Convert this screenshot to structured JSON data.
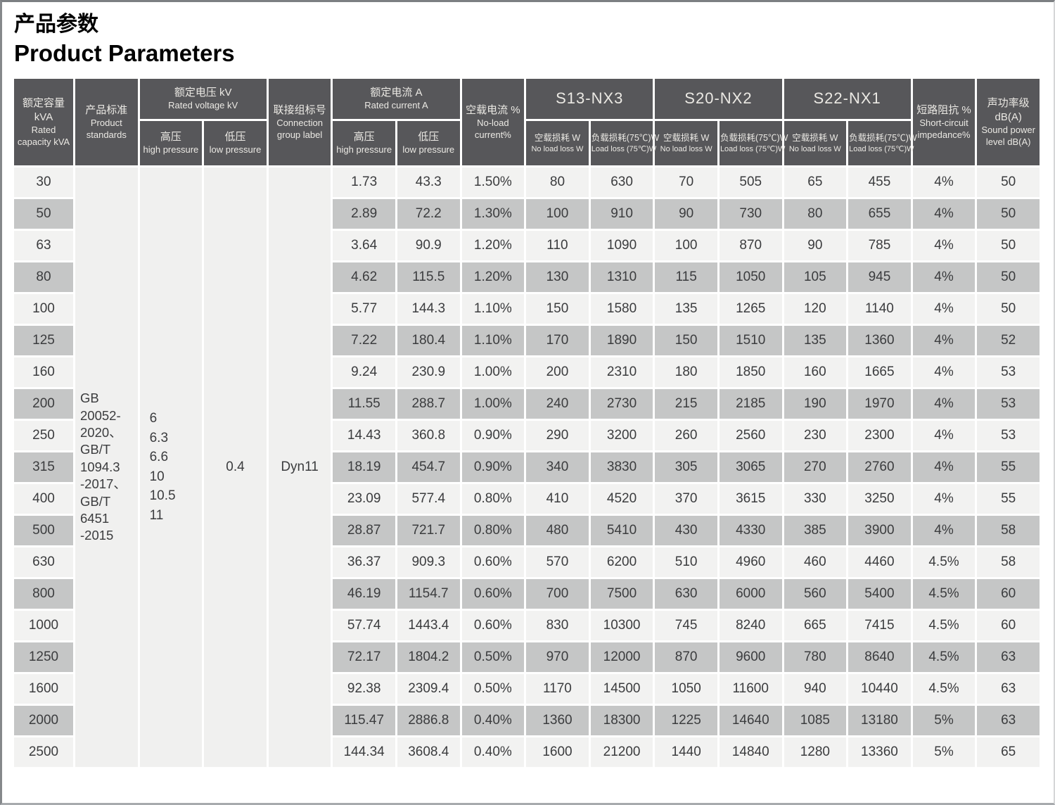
{
  "title": {
    "zh": "产品参数",
    "en": "Product Parameters"
  },
  "colors": {
    "header_bg": "#57575a",
    "header_text": "#ebe9e4",
    "row_light": "#f2f2f1",
    "row_dark": "#c5c6c6",
    "cell_text": "#3b3c3e"
  },
  "table": {
    "groups": {
      "voltage": {
        "zh": "额定电压 kV",
        "en": "Rated voltage kV"
      },
      "current": {
        "zh": "额定电流 A",
        "en": "Rated current A"
      },
      "s13": "S13-NX3",
      "s20": "S20-NX2",
      "s22": "S22-NX1"
    },
    "headers": {
      "capacity": {
        "zh": "额定容量kVA",
        "en": "Rated capacity kVA"
      },
      "standards": {
        "zh": "产品标准",
        "en": "Product standards"
      },
      "high_pressure": {
        "zh": "高压",
        "en": "high pressure"
      },
      "low_pressure": {
        "zh": "低压",
        "en": "low pressure"
      },
      "connection": {
        "zh": "联接组标号",
        "en": "Connection group label"
      },
      "no_load_current": {
        "zh": "空载电流 %",
        "en": "No-load current%"
      },
      "no_load_loss": {
        "zh": "空载损耗 W",
        "en": "No load loss W"
      },
      "load_loss": {
        "zh": "负载损耗(75℃)W",
        "en": "Load loss (75℃)W"
      },
      "impedance": {
        "zh": "短路阻抗 %",
        "en": "Short-circuit impedance%"
      },
      "sound": {
        "zh": "声功率级 dB(A)",
        "en": "Sound power level dB(A)"
      }
    },
    "merged_values": {
      "standards_lines": [
        "GB",
        "20052-",
        "2020、",
        "GB/T",
        "1094.3",
        "-2017、",
        "GB/T",
        "6451",
        "-2015"
      ],
      "high_voltage_lines": [
        "6",
        "6.3",
        "6.6",
        "10",
        "10.5",
        "11"
      ],
      "low_voltage": "0.4",
      "connection": "Dyn11"
    },
    "rows": [
      {
        "capacity": "30",
        "values": [
          "1.73",
          "43.3",
          "1.50%",
          "80",
          "630",
          "70",
          "505",
          "65",
          "455",
          "4%",
          "50"
        ]
      },
      {
        "capacity": "50",
        "values": [
          "2.89",
          "72.2",
          "1.30%",
          "100",
          "910",
          "90",
          "730",
          "80",
          "655",
          "4%",
          "50"
        ]
      },
      {
        "capacity": "63",
        "values": [
          "3.64",
          "90.9",
          "1.20%",
          "110",
          "1090",
          "100",
          "870",
          "90",
          "785",
          "4%",
          "50"
        ]
      },
      {
        "capacity": "80",
        "values": [
          "4.62",
          "115.5",
          "1.20%",
          "130",
          "1310",
          "115",
          "1050",
          "105",
          "945",
          "4%",
          "50"
        ]
      },
      {
        "capacity": "100",
        "values": [
          "5.77",
          "144.3",
          "1.10%",
          "150",
          "1580",
          "135",
          "1265",
          "120",
          "1140",
          "4%",
          "50"
        ]
      },
      {
        "capacity": "125",
        "values": [
          "7.22",
          "180.4",
          "1.10%",
          "170",
          "1890",
          "150",
          "1510",
          "135",
          "1360",
          "4%",
          "52"
        ]
      },
      {
        "capacity": "160",
        "values": [
          "9.24",
          "230.9",
          "1.00%",
          "200",
          "2310",
          "180",
          "1850",
          "160",
          "1665",
          "4%",
          "53"
        ]
      },
      {
        "capacity": "200",
        "values": [
          "11.55",
          "288.7",
          "1.00%",
          "240",
          "2730",
          "215",
          "2185",
          "190",
          "1970",
          "4%",
          "53"
        ]
      },
      {
        "capacity": "250",
        "values": [
          "14.43",
          "360.8",
          "0.90%",
          "290",
          "3200",
          "260",
          "2560",
          "230",
          "2300",
          "4%",
          "53"
        ]
      },
      {
        "capacity": "315",
        "values": [
          "18.19",
          "454.7",
          "0.90%",
          "340",
          "3830",
          "305",
          "3065",
          "270",
          "2760",
          "4%",
          "55"
        ]
      },
      {
        "capacity": "400",
        "values": [
          "23.09",
          "577.4",
          "0.80%",
          "410",
          "4520",
          "370",
          "3615",
          "330",
          "3250",
          "4%",
          "55"
        ]
      },
      {
        "capacity": "500",
        "values": [
          "28.87",
          "721.7",
          "0.80%",
          "480",
          "5410",
          "430",
          "4330",
          "385",
          "3900",
          "4%",
          "58"
        ]
      },
      {
        "capacity": "630",
        "values": [
          "36.37",
          "909.3",
          "0.60%",
          "570",
          "6200",
          "510",
          "4960",
          "460",
          "4460",
          "4.5%",
          "58"
        ]
      },
      {
        "capacity": "800",
        "values": [
          "46.19",
          "1154.7",
          "0.60%",
          "700",
          "7500",
          "630",
          "6000",
          "560",
          "5400",
          "4.5%",
          "60"
        ]
      },
      {
        "capacity": "1000",
        "values": [
          "57.74",
          "1443.4",
          "0.60%",
          "830",
          "10300",
          "745",
          "8240",
          "665",
          "7415",
          "4.5%",
          "60"
        ]
      },
      {
        "capacity": "1250",
        "values": [
          "72.17",
          "1804.2",
          "0.50%",
          "970",
          "12000",
          "870",
          "9600",
          "780",
          "8640",
          "4.5%",
          "63"
        ]
      },
      {
        "capacity": "1600",
        "values": [
          "92.38",
          "2309.4",
          "0.50%",
          "1170",
          "14500",
          "1050",
          "11600",
          "940",
          "10440",
          "4.5%",
          "63"
        ]
      },
      {
        "capacity": "2000",
        "values": [
          "115.47",
          "2886.8",
          "0.40%",
          "1360",
          "18300",
          "1225",
          "14640",
          "1085",
          "13180",
          "5%",
          "63"
        ]
      },
      {
        "capacity": "2500",
        "values": [
          "144.34",
          "3608.4",
          "0.40%",
          "1600",
          "21200",
          "1440",
          "14840",
          "1280",
          "13360",
          "5%",
          "65"
        ]
      }
    ]
  }
}
